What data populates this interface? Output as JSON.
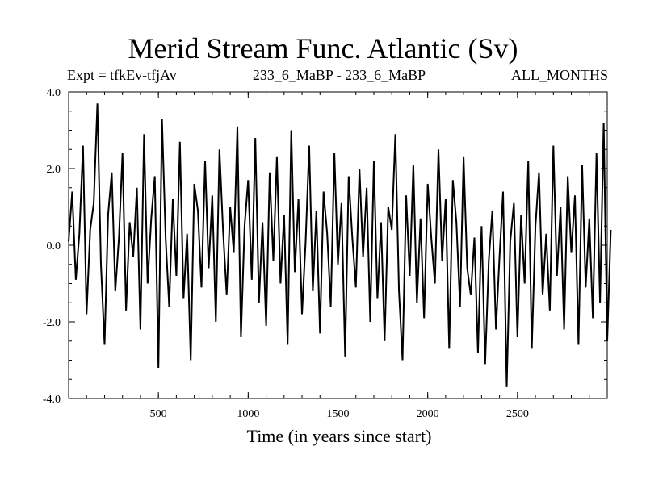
{
  "chart_data": {
    "type": "line",
    "title": "Merid Stream Func. Atlantic (Sv)",
    "header_left": "Expt = tfkEv-tfjAv",
    "header_center": "233_6_MaBP - 233_6_MaBP",
    "header_right": "ALL_MONTHS",
    "xlabel": "Time (in years since start)",
    "ylabel": "",
    "xlim": [
      0,
      3000
    ],
    "ylim": [
      -4.0,
      4.0
    ],
    "x_ticks": [
      500,
      1000,
      1500,
      2000,
      2500
    ],
    "x_tick_labels": [
      "500",
      "1000",
      "1500",
      "2000",
      "2500"
    ],
    "y_ticks": [
      -4.0,
      -2.0,
      0.0,
      2.0,
      4.0
    ],
    "y_tick_labels": [
      "-4.0",
      "-2.0",
      "0.0",
      "2.0",
      "4.0"
    ],
    "series": [
      {
        "color": "#000000",
        "x_start": 0,
        "x_step": 20,
        "values": [
          0.1,
          1.4,
          -0.9,
          0.3,
          2.6,
          -1.8,
          0.4,
          1.1,
          3.7,
          -0.5,
          -2.6,
          0.8,
          1.9,
          -1.2,
          0.2,
          2.4,
          -1.7,
          0.6,
          -0.3,
          1.5,
          -2.2,
          2.9,
          -1.0,
          0.7,
          1.8,
          -3.2,
          3.3,
          0.2,
          -1.6,
          1.2,
          -0.8,
          2.7,
          -1.4,
          0.3,
          -3.0,
          1.6,
          0.9,
          -1.1,
          2.2,
          -0.6,
          1.3,
          -2.0,
          2.5,
          0.4,
          -1.3,
          1.0,
          -0.2,
          3.1,
          -2.4,
          0.5,
          1.7,
          -0.9,
          2.8,
          -1.5,
          0.6,
          -2.1,
          1.9,
          -0.4,
          2.3,
          -1.0,
          0.8,
          -2.6,
          3.0,
          -0.7,
          1.2,
          -1.8,
          0.1,
          2.6,
          -1.2,
          0.9,
          -2.3,
          1.4,
          0.3,
          -1.6,
          2.4,
          -0.5,
          1.1,
          -2.9,
          1.8,
          0.2,
          -1.1,
          2.0,
          -0.3,
          1.5,
          -2.0,
          2.2,
          -1.4,
          0.6,
          -2.5,
          1.0,
          0.4,
          2.9,
          -1.2,
          -3.0,
          1.3,
          -0.8,
          2.1,
          -1.5,
          0.7,
          -1.9,
          1.6,
          0.2,
          -1.0,
          2.5,
          -0.4,
          1.2,
          -2.7,
          1.7,
          0.6,
          -1.6,
          2.3,
          -0.6,
          -1.3,
          0.2,
          -2.8,
          0.5,
          -3.1,
          -0.4,
          0.9,
          -2.2,
          -0.3,
          1.4,
          -3.7,
          0.1,
          1.1,
          -2.4,
          0.8,
          -1.0,
          2.2,
          -2.7,
          0.5,
          1.9,
          -1.3,
          0.3,
          -1.7,
          2.6,
          -0.8,
          1.0,
          -2.2,
          1.8,
          -0.2,
          1.3,
          -2.6,
          2.1,
          -1.1,
          0.7,
          -1.9,
          2.4,
          -1.5,
          3.2,
          -2.5,
          0.4
        ]
      }
    ],
    "grid": false,
    "legend": "none"
  }
}
